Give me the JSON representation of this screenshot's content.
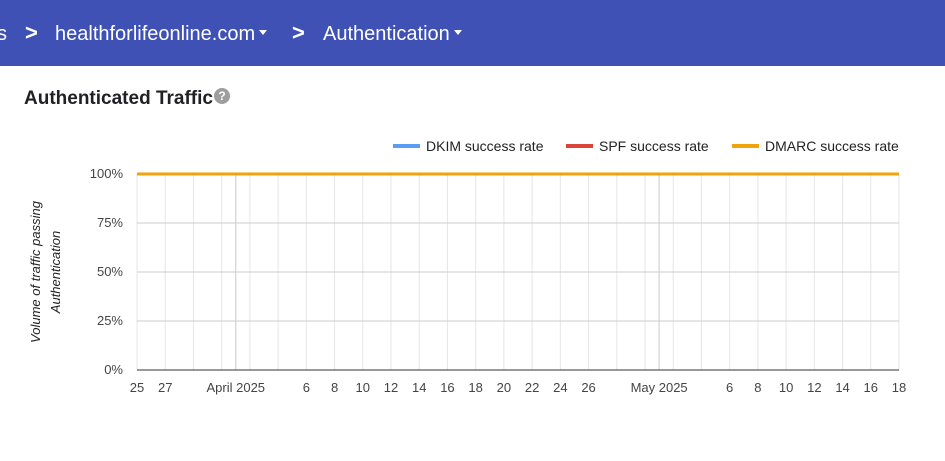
{
  "breadcrumb": {
    "items": [
      {
        "label": "s"
      },
      {
        "label": "healthforlifeonline.com"
      },
      {
        "label": "Authentication"
      }
    ],
    "separator": ">"
  },
  "card": {
    "title": "Authenticated Traffic",
    "help_icon": "help-circle-icon",
    "help_glyph": "?"
  },
  "colors": {
    "header_bg": "#3f51b5",
    "dkim": "#5b9cf5",
    "spf": "#db4437",
    "dmarc": "#f0a30a"
  },
  "chart_data": {
    "type": "line",
    "ylabel": [
      "Volume of traffic passing",
      "Authentication"
    ],
    "ylim": [
      0,
      100
    ],
    "yticks": [
      "0%",
      "25%",
      "50%",
      "75%",
      "100%"
    ],
    "legend_position": "top-right",
    "x_tick_labels": [
      "25",
      "27",
      "April 2025",
      "6",
      "8",
      "10",
      "12",
      "14",
      "16",
      "18",
      "20",
      "22",
      "24",
      "26",
      "May 2025",
      "6",
      "8",
      "10",
      "12",
      "14",
      "16",
      "18"
    ],
    "x": [
      "2025-03-25",
      "2025-05-18"
    ],
    "series": [
      {
        "name": "DKIM success rate",
        "color": "#5b9cf5",
        "values": [
          100,
          100
        ]
      },
      {
        "name": "SPF success rate",
        "color": "#db4437",
        "values": [
          100,
          100
        ]
      },
      {
        "name": "DMARC success rate",
        "color": "#f0a30a",
        "values": [
          100,
          100
        ]
      }
    ]
  }
}
